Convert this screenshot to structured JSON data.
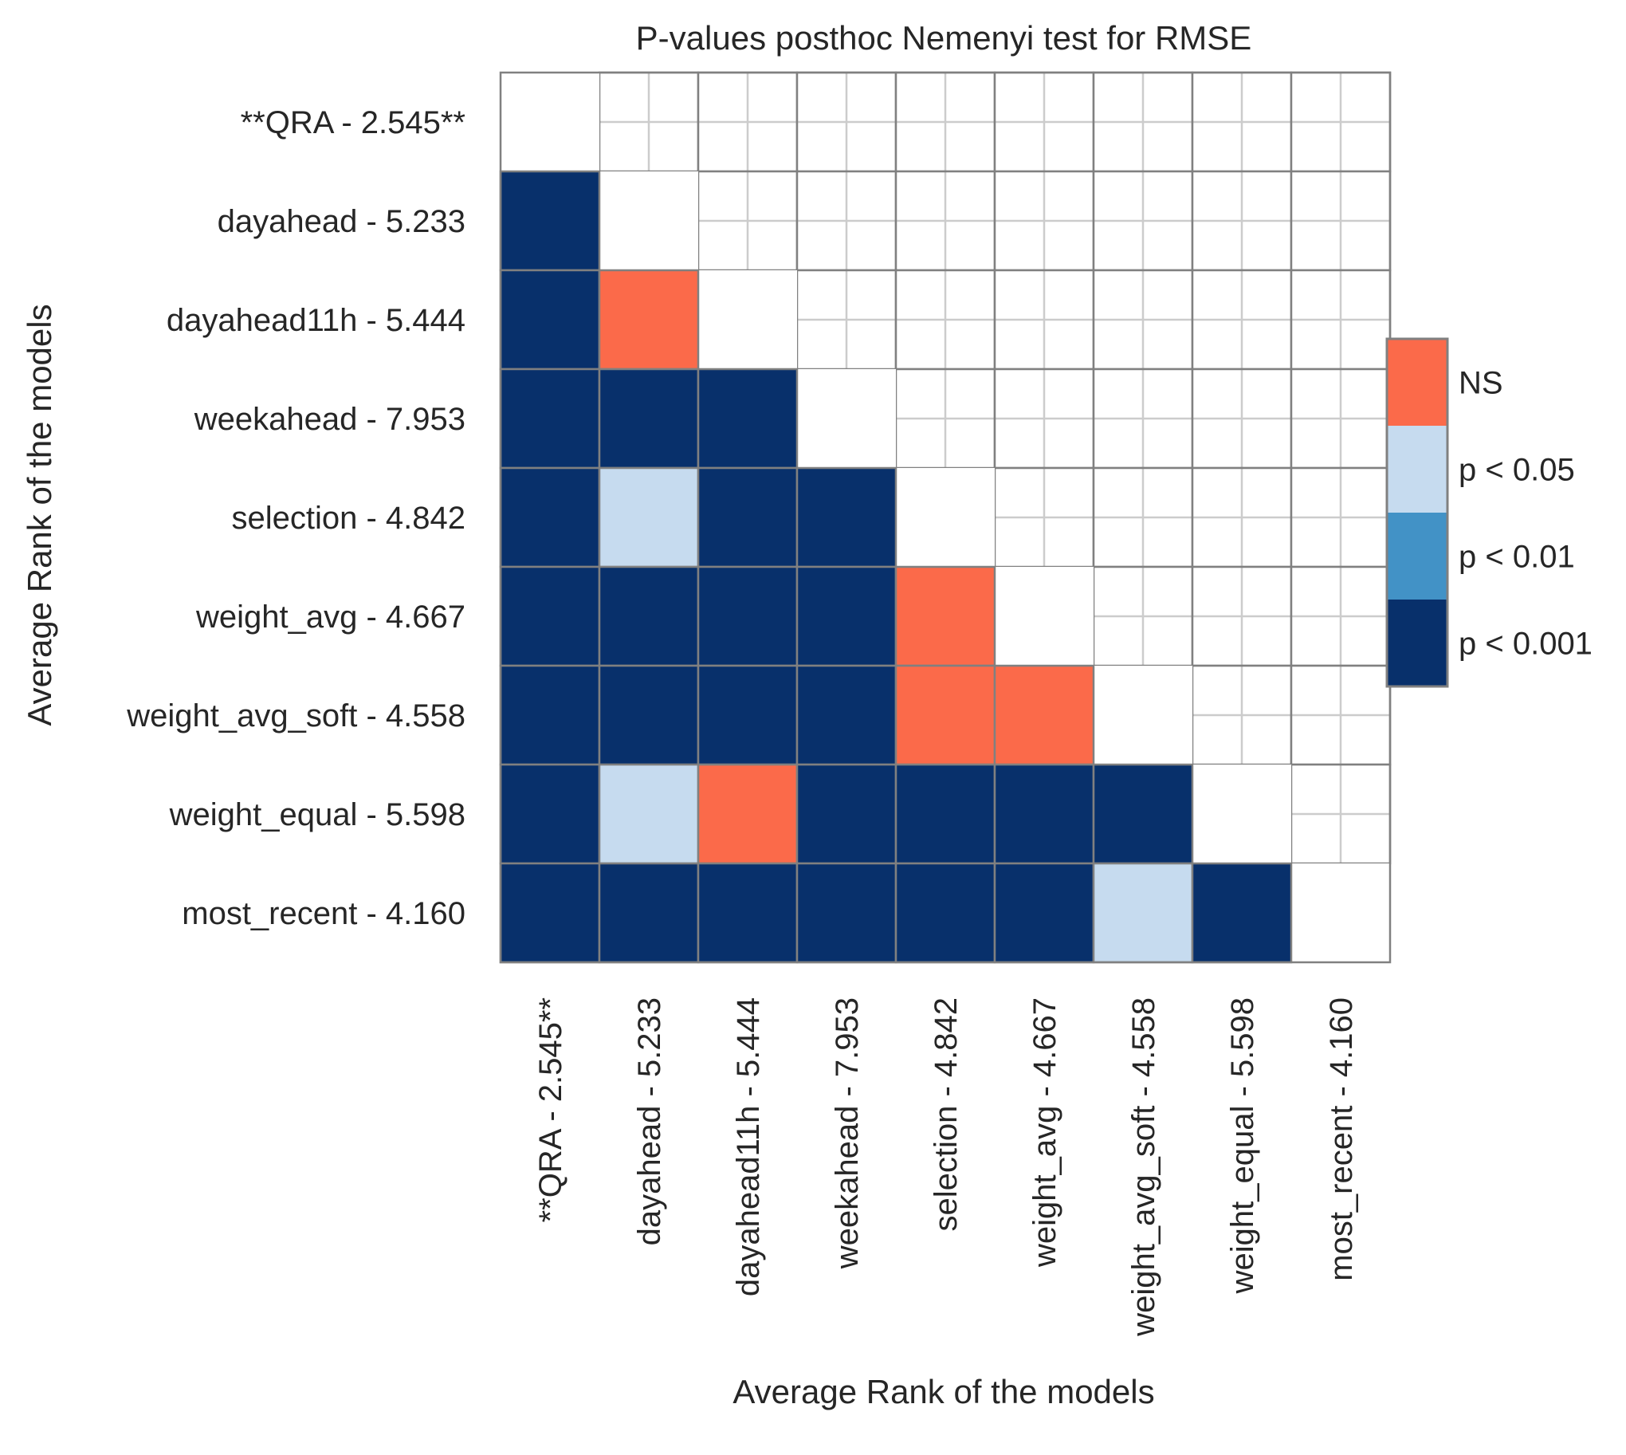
{
  "chart_data": {
    "type": "heatmap",
    "title": "P-values posthoc Nemenyi test for RMSE",
    "xlabel": "Average Rank of the models",
    "ylabel": "Average Rank of the models",
    "labels": [
      "**QRA - 2.545**",
      "dayahead - 5.233",
      "dayahead11h - 5.444",
      "weekahead - 7.953",
      "selection - 4.842",
      "weight_avg - 4.667",
      "weight_avg_soft - 4.558",
      "weight_equal - 5.598",
      "most_recent - 4.160"
    ],
    "lower_triangle_categories": [
      [],
      [
        "p < 0.001"
      ],
      [
        "p < 0.001",
        "NS"
      ],
      [
        "p < 0.001",
        "p < 0.001",
        "p < 0.001"
      ],
      [
        "p < 0.001",
        "p < 0.05",
        "p < 0.001",
        "p < 0.001"
      ],
      [
        "p < 0.001",
        "p < 0.001",
        "p < 0.001",
        "p < 0.001",
        "NS"
      ],
      [
        "p < 0.001",
        "p < 0.001",
        "p < 0.001",
        "p < 0.001",
        "NS",
        "NS"
      ],
      [
        "p < 0.001",
        "p < 0.05",
        "NS",
        "p < 0.001",
        "p < 0.001",
        "p < 0.001",
        "p < 0.001"
      ],
      [
        "p < 0.001",
        "p < 0.001",
        "p < 0.001",
        "p < 0.001",
        "p < 0.001",
        "p < 0.001",
        "p < 0.05",
        "p < 0.001"
      ]
    ],
    "legend": [
      {
        "label": "NS",
        "color": "#fb6a4a"
      },
      {
        "label": "p < 0.05",
        "color": "#c6dbef"
      },
      {
        "label": "p < 0.01",
        "color": "#4292c6"
      },
      {
        "label": "p < 0.001",
        "color": "#08306b"
      }
    ],
    "legend_placement": "right",
    "grid": true
  }
}
